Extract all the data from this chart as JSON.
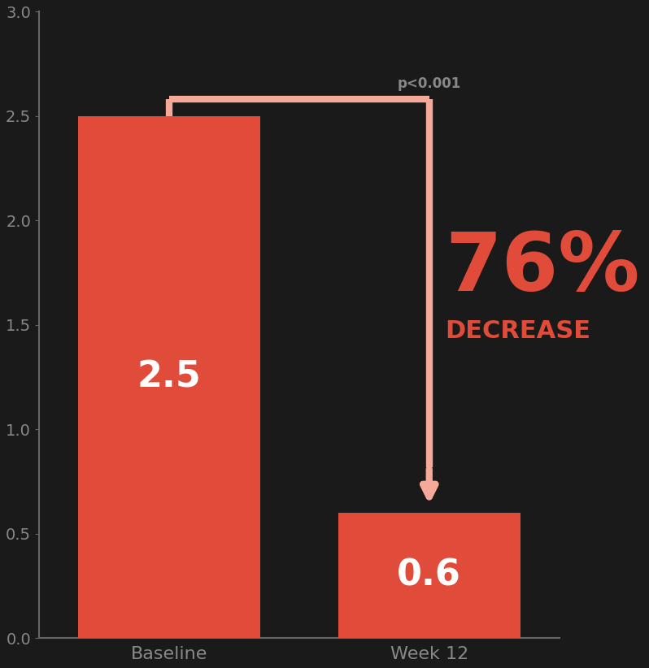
{
  "bar_values": [
    2.5,
    0.6
  ],
  "bar_labels": [
    "Baseline",
    "Week 12"
  ],
  "bar_color": "#E04B3A",
  "bar_width": 0.35,
  "bar_positions": [
    0.25,
    0.75
  ],
  "bar_label_values": [
    "2.5",
    "0.6"
  ],
  "ylim": [
    0,
    3.0
  ],
  "yticks": [
    0.0,
    0.5,
    1.0,
    1.5,
    2.0,
    2.5,
    3.0
  ],
  "background_color": "#1a1a1a",
  "bar_text_color": "#ffffff",
  "bar_text_fontsize": 32,
  "decrease_text": "76%",
  "decrease_subtext": "DECREASE",
  "decrease_color": "#E04B3A",
  "decrease_fontsize": 72,
  "decrease_sub_fontsize": 22,
  "arrow_color": "#F4A999",
  "bracket_annotation": "p<0.001",
  "bracket_annotation_color": "#888888",
  "xlabel_fontsize": 16,
  "xlabel_color": "#888888",
  "ytick_color": "#888888",
  "ytick_fontsize": 14,
  "spine_color": "#666666"
}
